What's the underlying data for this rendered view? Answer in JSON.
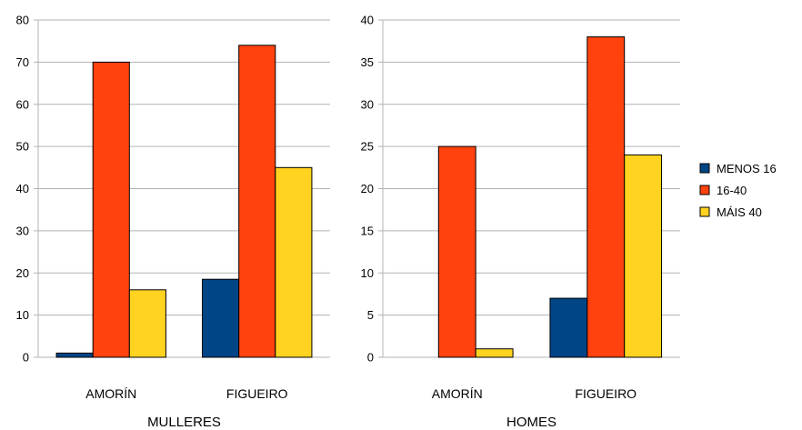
{
  "colors": {
    "menos16": "#004586",
    "r16_40": "#ff420e",
    "mais40": "#ffd320",
    "grid": "#b3b3b3",
    "axis": "#b3b3b3"
  },
  "legend": {
    "placement": "right",
    "items": [
      {
        "label": "MENOS 16",
        "color": "#004586"
      },
      {
        "label": "16-40",
        "color": "#ff420e"
      },
      {
        "label": "MÁIS 40",
        "color": "#ffd320"
      }
    ]
  },
  "chart_data": [
    {
      "type": "bar",
      "title": "",
      "xlabel": "MULLERES",
      "ylabel": "",
      "categories": [
        "AMORÍN",
        "FIGUEIRO"
      ],
      "ylim": [
        0,
        80
      ],
      "yticks": [
        0,
        10,
        20,
        30,
        40,
        50,
        60,
        70,
        80
      ],
      "grid": true,
      "series": [
        {
          "name": "MENOS 16",
          "color": "#004586",
          "values": [
            1,
            18.5
          ]
        },
        {
          "name": "16-40",
          "color": "#ff420e",
          "values": [
            70,
            74
          ]
        },
        {
          "name": "MÁIS 40",
          "color": "#ffd320",
          "values": [
            16,
            45
          ]
        }
      ]
    },
    {
      "type": "bar",
      "title": "",
      "xlabel": "HOMES",
      "ylabel": "",
      "categories": [
        "AMORÍN",
        "FIGUEIRO"
      ],
      "ylim": [
        0,
        40
      ],
      "yticks": [
        0,
        5,
        10,
        15,
        20,
        25,
        30,
        35,
        40
      ],
      "grid": true,
      "series": [
        {
          "name": "MENOS 16",
          "color": "#004586",
          "values": [
            0,
            7
          ]
        },
        {
          "name": "16-40",
          "color": "#ff420e",
          "values": [
            25,
            38
          ]
        },
        {
          "name": "MÁIS 40",
          "color": "#ffd320",
          "values": [
            1,
            24
          ]
        }
      ]
    }
  ]
}
